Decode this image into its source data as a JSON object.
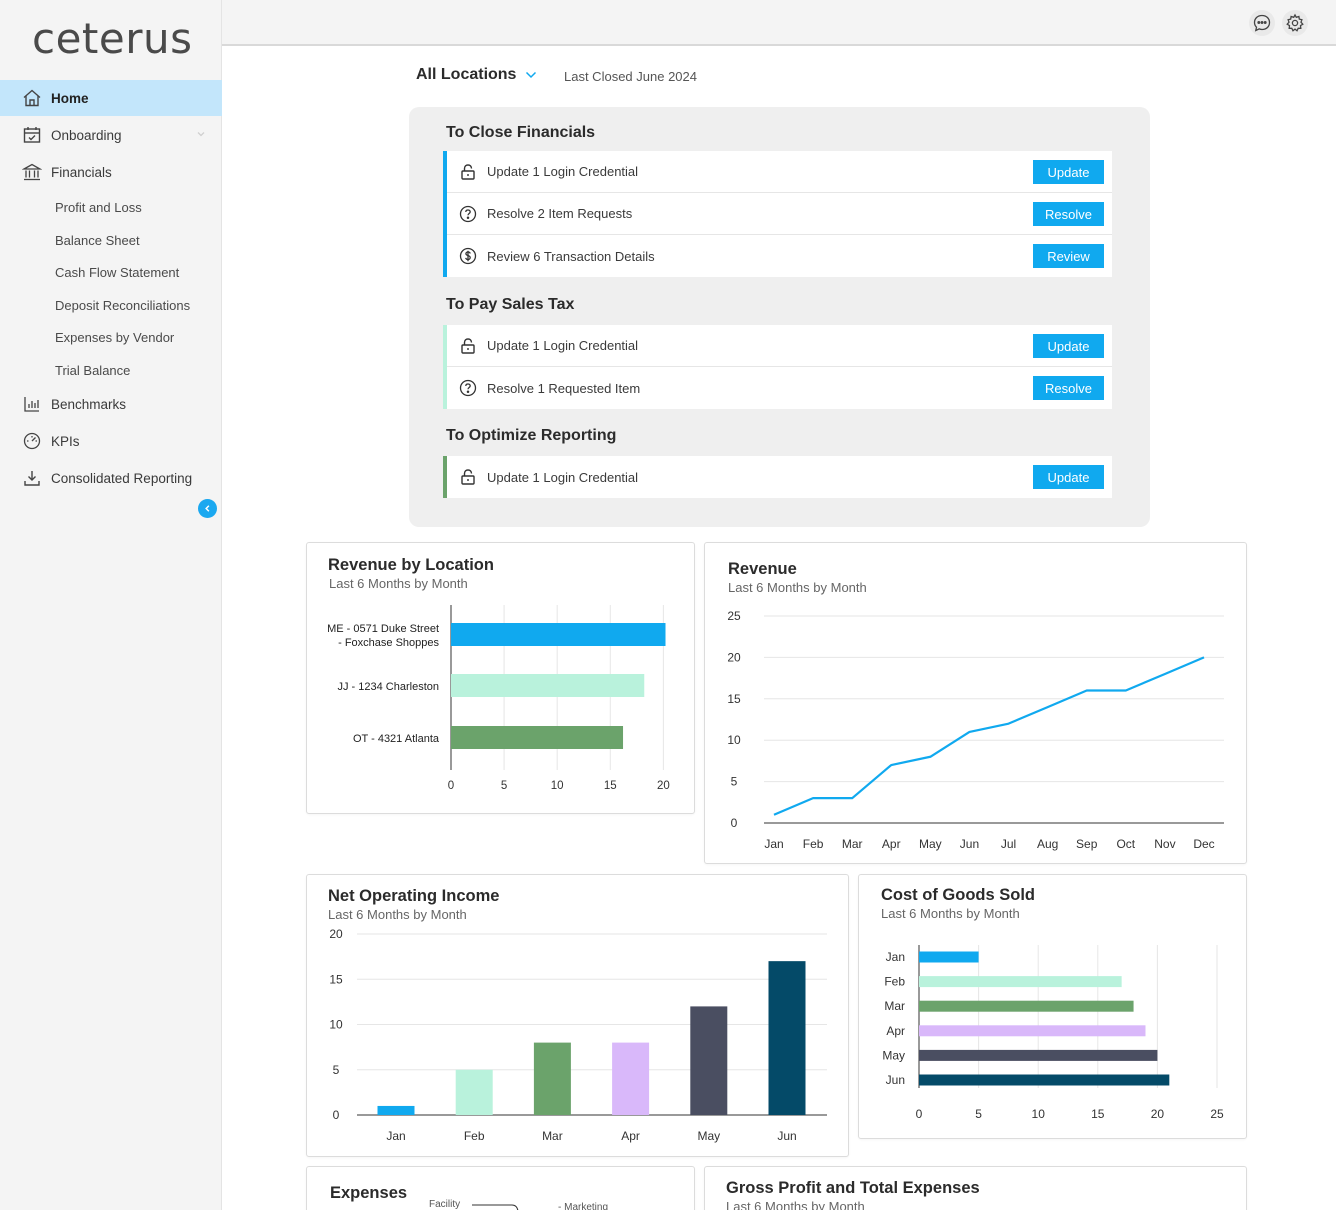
{
  "app": {
    "logo": "ceterus"
  },
  "sidebar": {
    "items": [
      {
        "label": "Home",
        "icon": "home-icon",
        "active": true
      },
      {
        "label": "Onboarding",
        "icon": "calendar-check-icon"
      },
      {
        "label": "Financials",
        "icon": "bank-icon"
      },
      {
        "label": "Benchmarks",
        "icon": "bar-chart-icon"
      },
      {
        "label": "KPIs",
        "icon": "gauge-icon"
      },
      {
        "label": "Consolidated Reporting",
        "icon": "download-icon"
      }
    ],
    "financials_sub": [
      "Profit and Loss",
      "Balance Sheet",
      "Cash Flow Statement",
      "Deposit Reconciliations",
      "Expenses by Vendor",
      "Trial Balance"
    ]
  },
  "header": {
    "location": "All Locations",
    "last_closed": "Last Closed June 2024"
  },
  "tasks": {
    "close": {
      "title": "To Close Financials",
      "accent": "#10a9ef",
      "rows": [
        {
          "text": "Update 1 Login Credential",
          "button": "Update",
          "icon": "lock-icon"
        },
        {
          "text": "Resolve 2 Item Requests",
          "button": "Resolve",
          "icon": "question-icon"
        },
        {
          "text": "Review 6 Transaction Details",
          "button": "Review",
          "icon": "dollar-icon"
        }
      ]
    },
    "sales_tax": {
      "title": "To Pay Sales Tax",
      "accent": "#b9f2dc",
      "rows": [
        {
          "text": "Update 1 Login Credential",
          "button": "Update",
          "icon": "lock-icon"
        },
        {
          "text": "Resolve 1 Requested Item",
          "button": "Resolve",
          "icon": "question-icon"
        }
      ]
    },
    "reporting": {
      "title": "To Optimize Reporting",
      "accent": "#6ba36b",
      "rows": [
        {
          "text": "Update 1 Login Credential",
          "button": "Update",
          "icon": "lock-icon"
        }
      ]
    }
  },
  "cards": {
    "rev_location": {
      "title": "Revenue by Location",
      "subtitle": "Last 6 Months by Month"
    },
    "revenue": {
      "title": "Revenue",
      "subtitle": "Last 6 Months by Month"
    },
    "noi": {
      "title": "Net Operating Income",
      "subtitle": "Last 6 Months by Month"
    },
    "cogs": {
      "title": "Cost of Goods Sold",
      "subtitle": "Last 6 Months by Month"
    },
    "expenses": {
      "title": "Expenses",
      "labels": [
        "Facility",
        "Marketing"
      ]
    },
    "gross_profit": {
      "title": "Gross Profit and Total Expenses",
      "subtitle": "Last 6 Months by Month"
    }
  },
  "chart_data": [
    {
      "type": "bar",
      "orientation": "horizontal",
      "title": "Revenue by Location",
      "subtitle": "Last 6 Months by Month",
      "categories": [
        [
          "ME - 0571 Duke Street",
          "- Foxchase Shoppes"
        ],
        [
          "JJ - 1234 Charleston"
        ],
        [
          "OT - 4321 Atlanta"
        ]
      ],
      "values": [
        20.2,
        18.2,
        16.2
      ],
      "colors": [
        "#10a9ef",
        "#b9f2dc",
        "#6ba36b"
      ],
      "xlim": [
        0,
        21
      ],
      "xticks": [
        0,
        5,
        10,
        15,
        20
      ],
      "grid": true
    },
    {
      "type": "line",
      "title": "Revenue",
      "subtitle": "Last 6 Months by Month",
      "x": [
        "Jan",
        "Feb",
        "Mar",
        "Apr",
        "May",
        "Jun",
        "Jul",
        "Aug",
        "Sep",
        "Oct",
        "Nov",
        "Dec"
      ],
      "values": [
        1,
        3,
        3,
        7,
        8,
        11,
        12,
        14,
        16,
        16,
        18,
        20
      ],
      "color": "#10a9ef",
      "ylim": [
        0,
        25
      ],
      "yticks": [
        0,
        5,
        10,
        15,
        20,
        25
      ],
      "grid": true
    },
    {
      "type": "bar",
      "title": "Net Operating Income",
      "subtitle": "Last 6 Months by Month",
      "categories": [
        "Jan",
        "Feb",
        "Mar",
        "Apr",
        "May",
        "Jun"
      ],
      "values": [
        1,
        5,
        8,
        8,
        12,
        17
      ],
      "colors": [
        "#10a9ef",
        "#b9f2dc",
        "#6ba36b",
        "#d9b8fa",
        "#4a4e61",
        "#044a68"
      ],
      "ylim": [
        0,
        20
      ],
      "yticks": [
        0,
        5,
        10,
        15,
        20
      ],
      "grid": true
    },
    {
      "type": "bar",
      "orientation": "horizontal",
      "title": "Cost of Goods Sold",
      "subtitle": "Last 6 Months by Month",
      "categories": [
        "Jan",
        "Feb",
        "Mar",
        "Apr",
        "May",
        "Jun"
      ],
      "values": [
        5,
        17,
        18,
        19,
        20,
        21
      ],
      "colors": [
        "#10a9ef",
        "#b9f2dc",
        "#6ba36b",
        "#d9b8fa",
        "#4a4e61",
        "#044a68"
      ],
      "xlim": [
        0,
        25
      ],
      "xticks": [
        0,
        5,
        10,
        15,
        20,
        25
      ],
      "grid": true
    }
  ]
}
